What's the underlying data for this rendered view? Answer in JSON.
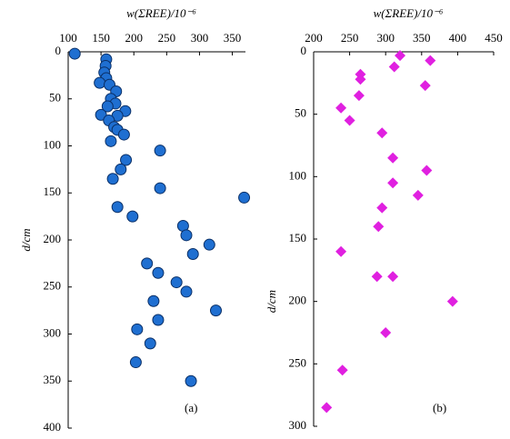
{
  "chart_data": [
    {
      "type": "scatter",
      "panel_label": "(a)",
      "x_label": "w(ΣREE)/10⁻⁶",
      "y_label": "d/cm",
      "xlim": [
        100,
        370
      ],
      "xticks": [
        100,
        150,
        200,
        250,
        300,
        350
      ],
      "ylim": [
        0,
        400
      ],
      "yticks": [
        0,
        50,
        100,
        150,
        200,
        250,
        300,
        350,
        400
      ],
      "marker": "circle",
      "color": "#1f6fd1",
      "x": [
        110,
        158,
        157,
        155,
        158,
        148,
        163,
        173,
        165,
        172,
        160,
        187,
        175,
        150,
        162,
        170,
        175,
        185,
        165,
        188,
        240,
        180,
        168,
        240,
        368,
        175,
        198,
        275,
        280,
        315,
        290,
        220,
        237,
        265,
        280,
        230,
        325,
        237,
        205,
        225,
        203,
        287
      ],
      "values": [
        2,
        8,
        15,
        22,
        28,
        33,
        35,
        42,
        50,
        55,
        58,
        63,
        68,
        67,
        73,
        80,
        83,
        88,
        95,
        115,
        105,
        125,
        135,
        145,
        155,
        165,
        175,
        185,
        195,
        205,
        215,
        225,
        235,
        245,
        255,
        265,
        275,
        285,
        295,
        310,
        330,
        350
      ]
    },
    {
      "type": "scatter",
      "panel_label": "(b)",
      "x_label": "w(ΣREE)/10⁻⁶",
      "y_label": "d/cm",
      "xlim": [
        200,
        450
      ],
      "xticks": [
        200,
        250,
        300,
        350,
        400,
        450
      ],
      "ylim": [
        0,
        300
      ],
      "yticks": [
        0,
        50,
        100,
        150,
        200,
        250,
        300
      ],
      "marker": "diamond",
      "color": "#e020e0",
      "x": [
        320,
        362,
        312,
        265,
        265,
        355,
        263,
        238,
        250,
        295,
        310,
        357,
        310,
        345,
        295,
        290,
        238,
        288,
        310,
        393,
        300,
        240,
        218
      ],
      "values": [
        3,
        7,
        12,
        18,
        22,
        27,
        35,
        45,
        55,
        65,
        85,
        95,
        105,
        115,
        125,
        140,
        160,
        180,
        180,
        200,
        225,
        255,
        285
      ]
    }
  ]
}
